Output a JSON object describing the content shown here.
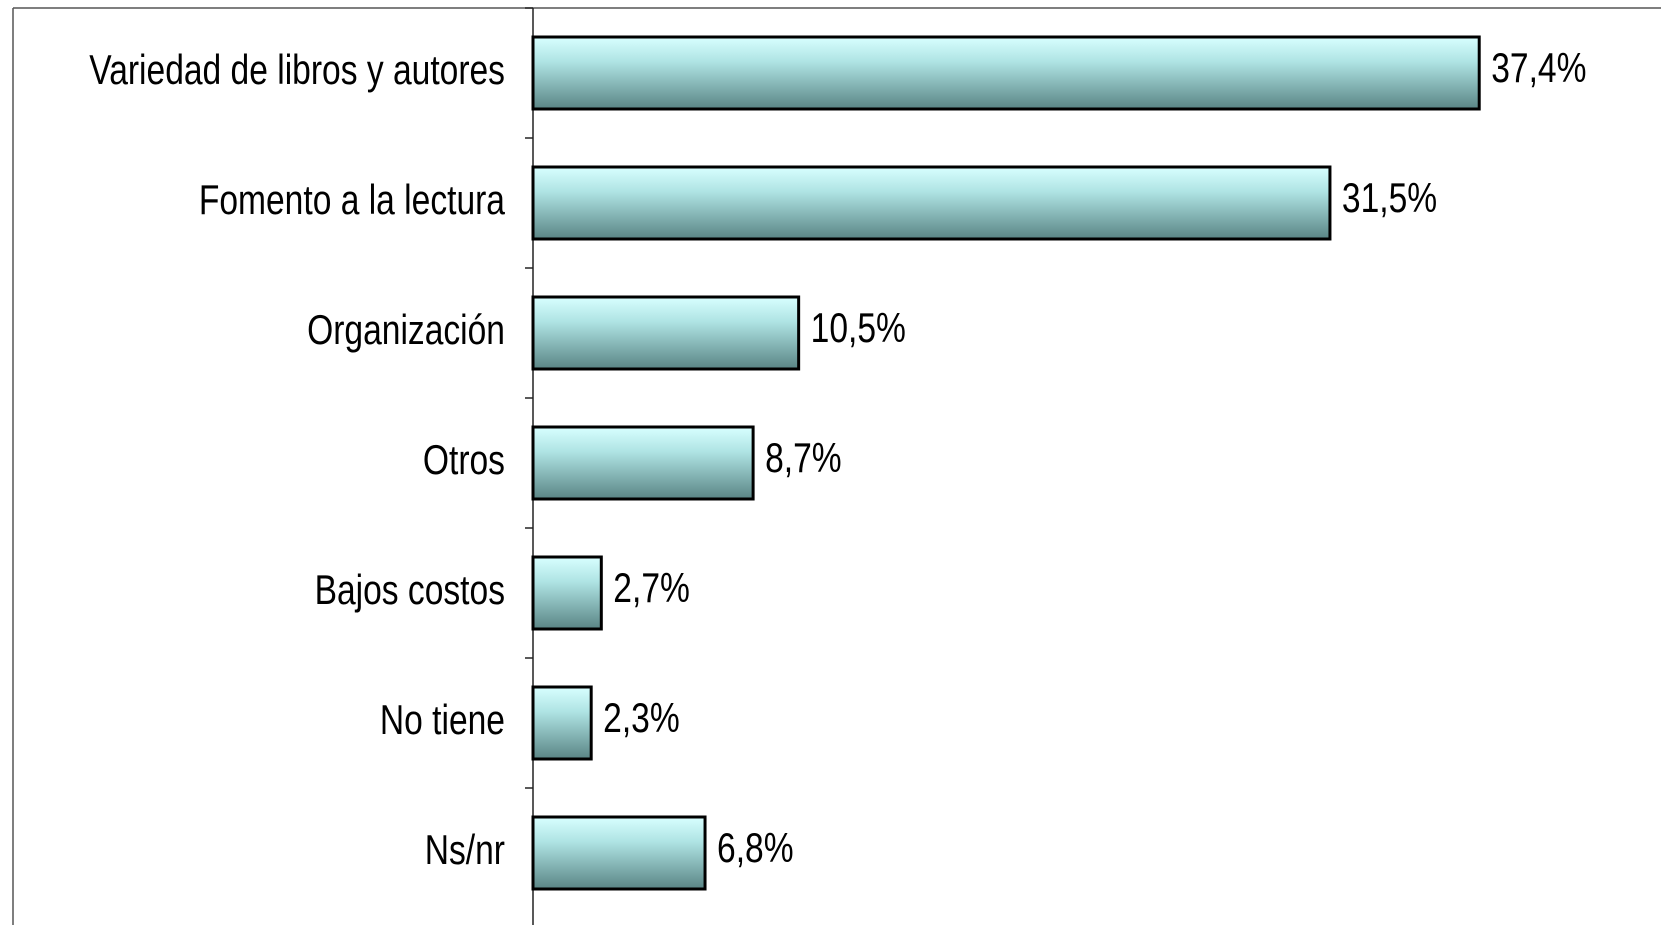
{
  "chart_data": {
    "type": "bar",
    "orientation": "horizontal",
    "categories": [
      "Variedad de libros y autores",
      "Fomento a la lectura ",
      "Organización",
      "Otros",
      "Bajos costos",
      "No tiene",
      "Ns/nr"
    ],
    "values": [
      37.4,
      31.5,
      10.5,
      8.7,
      2.7,
      2.3,
      6.8
    ],
    "value_labels": [
      "37,4%",
      "31,5%",
      "10,5%",
      "8,7%",
      "2,7%",
      "2,3%",
      "6,8%"
    ],
    "color": "#7fb3b3"
  }
}
